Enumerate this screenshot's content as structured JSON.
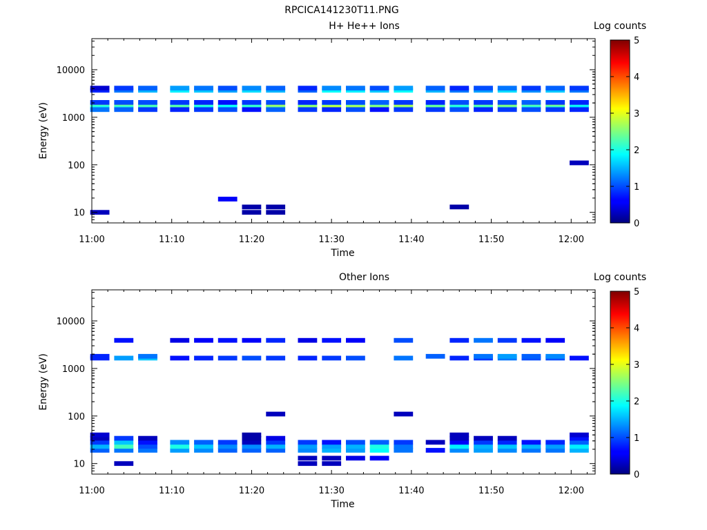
{
  "title": "RPCICA141230T11.PNG",
  "chart_data": [
    {
      "type": "heatmap",
      "title": "H+ He++ Ions",
      "xlabel": "Time",
      "ylabel": "Energy (eV)",
      "yscale": "log",
      "ylim": [
        6,
        45000
      ],
      "xlim": [
        "11:00",
        "12:03"
      ],
      "x_ticks": [
        "11:00",
        "11:10",
        "11:20",
        "11:30",
        "11:40",
        "11:50",
        "12:00"
      ],
      "y_ticks": [
        "10",
        "100",
        "1000",
        "10000"
      ],
      "colorbar": {
        "label": "Log counts",
        "range": [
          0,
          5
        ],
        "ticks": [
          "0",
          "1",
          "2",
          "3",
          "4",
          "5"
        ]
      },
      "time_bins": [
        "11:01",
        "11:04",
        "11:07",
        "11:11",
        "11:14",
        "11:17",
        "11:20",
        "11:23",
        "11:27",
        "11:30",
        "11:33",
        "11:36",
        "11:39",
        "11:43",
        "11:46",
        "11:49",
        "11:52",
        "11:55",
        "11:58",
        "12:01"
      ],
      "bands": [
        {
          "energy": 1800,
          "values": [
            2.5,
            2.7,
            2.3,
            2.2,
            2.3,
            2.0,
            2.2,
            2.9,
            2.3,
            2.4,
            2.3,
            2.4,
            2.9,
            2.2,
            2.3,
            2.6,
            2.7,
            2.6,
            2.9,
            2.1
          ]
        },
        {
          "energy": 1600,
          "values": [
            2.0,
            2.1,
            2.2,
            2.3,
            2.0,
            1.9,
            2.1,
            2.5,
            2.6,
            2.8,
            2.7,
            2.5,
            2.6,
            2.4,
            2.0,
            2.2,
            2.4,
            2.1,
            2.2,
            1.8
          ]
        },
        {
          "energy": 1450,
          "values": [
            1.2,
            1.1,
            0.9,
            0.8,
            0.9,
            1.0,
            0.7,
            1.1,
            0.9,
            0.8,
            1.0,
            0.7,
            0.9,
            0.9,
            1.0,
            0.8,
            0.9,
            1.0,
            0.9,
            0.8
          ]
        },
        {
          "energy": 2050,
          "values": [
            0.9,
            1.0,
            1.0,
            0.9,
            0.8,
            0.7,
            0.9,
            1.0,
            0.8,
            0.9,
            1.0,
            1.1,
            0.9,
            0.8,
            1.0,
            0.9,
            1.0,
            1.1,
            0.9,
            0.8
          ]
        },
        {
          "energy": 3700,
          "values": [
            0.8,
            1.2,
            1.5,
            1.8,
            1.6,
            1.4,
            1.7,
            1.5,
            1.1,
            1.9,
            1.8,
            1.6,
            1.9,
            1.5,
            1.2,
            1.4,
            1.7,
            1.3,
            1.6,
            1.2
          ]
        },
        {
          "energy": 4100,
          "values": [
            0.4,
            0.9,
            1.1,
            1.4,
            1.2,
            1.0,
            1.3,
            1.1,
            0.8,
            1.3,
            1.2,
            1.0,
            1.4,
            1.1,
            0.8,
            1.0,
            1.2,
            0.9,
            1.1,
            0.9
          ]
        },
        {
          "energy": 10,
          "values": [
            0.3,
            null,
            null,
            null,
            null,
            null,
            0.2,
            0.2,
            null,
            null,
            null,
            null,
            null,
            null,
            null,
            null,
            null,
            null,
            null,
            null
          ]
        },
        {
          "energy": 13,
          "values": [
            null,
            null,
            null,
            null,
            null,
            null,
            0.2,
            0.2,
            null,
            null,
            null,
            null,
            null,
            null,
            0.2,
            null,
            null,
            null,
            null,
            null
          ]
        },
        {
          "energy": 110,
          "values": [
            null,
            null,
            null,
            null,
            null,
            null,
            null,
            null,
            null,
            null,
            null,
            null,
            null,
            null,
            null,
            null,
            null,
            null,
            null,
            0.3
          ]
        },
        {
          "energy": 19,
          "values": [
            null,
            null,
            null,
            null,
            null,
            0.6,
            null,
            null,
            null,
            null,
            null,
            null,
            null,
            null,
            null,
            null,
            null,
            null,
            null,
            null
          ]
        }
      ]
    },
    {
      "type": "heatmap",
      "title": "Other Ions",
      "xlabel": "Time",
      "ylabel": "Energy (eV)",
      "yscale": "log",
      "ylim": [
        6,
        45000
      ],
      "xlim": [
        "11:00",
        "12:03"
      ],
      "x_ticks": [
        "11:00",
        "11:10",
        "11:20",
        "11:30",
        "11:40",
        "11:50",
        "12:00"
      ],
      "y_ticks": [
        "10",
        "100",
        "1000",
        "10000"
      ],
      "colorbar": {
        "label": "Log counts",
        "range": [
          0,
          5
        ],
        "ticks": [
          "0",
          "1",
          "2",
          "3",
          "4",
          "5"
        ]
      },
      "time_bins": [
        "11:01",
        "11:04",
        "11:07",
        "11:11",
        "11:14",
        "11:17",
        "11:20",
        "11:23",
        "11:27",
        "11:30",
        "11:33",
        "11:36",
        "11:39",
        "11:43",
        "11:46",
        "11:49",
        "11:52",
        "11:55",
        "11:58",
        "12:01"
      ],
      "bands": [
        {
          "energy": 19,
          "values": [
            1.1,
            1.2,
            1.2,
            1.4,
            1.3,
            1.1,
            1.1,
            1.1,
            1.3,
            1.5,
            1.4,
            1.9,
            1.2,
            0.7,
            1.3,
            1.4,
            1.3,
            1.2,
            1.2,
            1.5
          ]
        },
        {
          "energy": 23,
          "values": [
            1.5,
            2.2,
            1.0,
            2.0,
            1.6,
            1.3,
            1.3,
            1.5,
            1.4,
            1.4,
            1.5,
            2.0,
            1.2,
            null,
            1.8,
            1.5,
            1.6,
            1.5,
            1.4,
            1.8
          ]
        },
        {
          "energy": 28,
          "values": [
            0.9,
            1.6,
            0.7,
            1.3,
            1.1,
            0.9,
            0.3,
            0.9,
            0.9,
            0.7,
            1.0,
            1.1,
            0.9,
            0.3,
            0.6,
            0.9,
            0.8,
            0.7,
            0.8,
            1.1
          ]
        },
        {
          "energy": 34,
          "values": [
            0.3,
            0.9,
            0.3,
            null,
            null,
            null,
            0.2,
            0.5,
            null,
            null,
            null,
            null,
            null,
            null,
            0.3,
            0.3,
            0.3,
            null,
            null,
            0.7
          ]
        },
        {
          "energy": 40,
          "values": [
            0.4,
            null,
            null,
            null,
            null,
            null,
            0.2,
            null,
            null,
            null,
            null,
            null,
            null,
            null,
            0.3,
            null,
            null,
            null,
            null,
            0.4
          ]
        },
        {
          "energy": 1650,
          "values": [
            0.8,
            1.4,
            1.6,
            0.7,
            0.8,
            0.9,
            1.0,
            0.9,
            0.8,
            0.9,
            1.0,
            null,
            1.2,
            null,
            0.8,
            0.9,
            1.2,
            1.0,
            1.0,
            0.7
          ]
        },
        {
          "energy": 1800,
          "values": [
            0.8,
            null,
            1.2,
            null,
            null,
            null,
            null,
            null,
            null,
            null,
            null,
            null,
            null,
            1.1,
            null,
            1.2,
            1.4,
            1.1,
            1.3,
            null
          ]
        },
        {
          "energy": 3900,
          "values": [
            null,
            0.7,
            null,
            0.5,
            0.6,
            0.7,
            0.6,
            0.8,
            0.5,
            0.7,
            0.6,
            null,
            1.0,
            null,
            0.8,
            1.2,
            0.9,
            0.7,
            0.6,
            null
          ]
        },
        {
          "energy": 10,
          "values": [
            null,
            0.3,
            null,
            null,
            null,
            null,
            null,
            null,
            0.3,
            0.3,
            null,
            null,
            null,
            null,
            null,
            null,
            null,
            null,
            null,
            null
          ]
        },
        {
          "energy": 13,
          "values": [
            null,
            null,
            null,
            null,
            null,
            null,
            null,
            null,
            0.3,
            0.3,
            0.5,
            0.6,
            null,
            null,
            null,
            null,
            null,
            null,
            null,
            null
          ]
        },
        {
          "energy": 110,
          "values": [
            null,
            null,
            null,
            null,
            null,
            null,
            null,
            0.3,
            null,
            null,
            null,
            null,
            0.3,
            null,
            null,
            null,
            null,
            null,
            null,
            null
          ]
        }
      ]
    }
  ]
}
